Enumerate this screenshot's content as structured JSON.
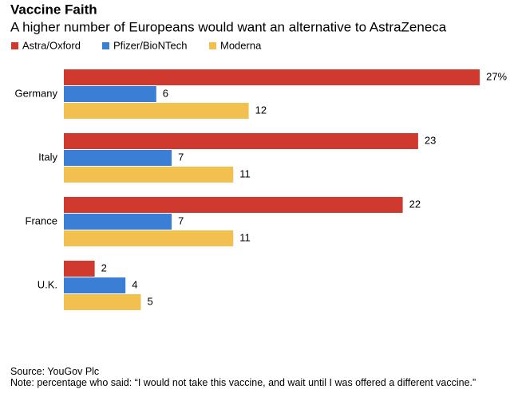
{
  "chart_data": {
    "type": "hbar",
    "title": "Vaccine Faith",
    "subtitle": "A higher number of Europeans would want an alternative to AstraZeneca",
    "categories": [
      "Germany",
      "Italy",
      "France",
      "U.K."
    ],
    "series": [
      {
        "name": "Astra/Oxford",
        "color": "#d03a2e",
        "values": [
          27,
          23,
          22,
          2
        ],
        "value_labels": [
          "27%",
          "23",
          "22",
          "2"
        ]
      },
      {
        "name": "Pfizer/BioNTech",
        "color": "#3a7fd5",
        "values": [
          6,
          7,
          7,
          4
        ]
      },
      {
        "name": "Moderna",
        "color": "#f2c04e",
        "values": [
          12,
          11,
          11,
          5
        ]
      }
    ],
    "source": "Source: YouGov Plc",
    "note": "Note: percentage who said: “I would not take this vaccine, and wait until I was offered a different vaccine.”"
  }
}
